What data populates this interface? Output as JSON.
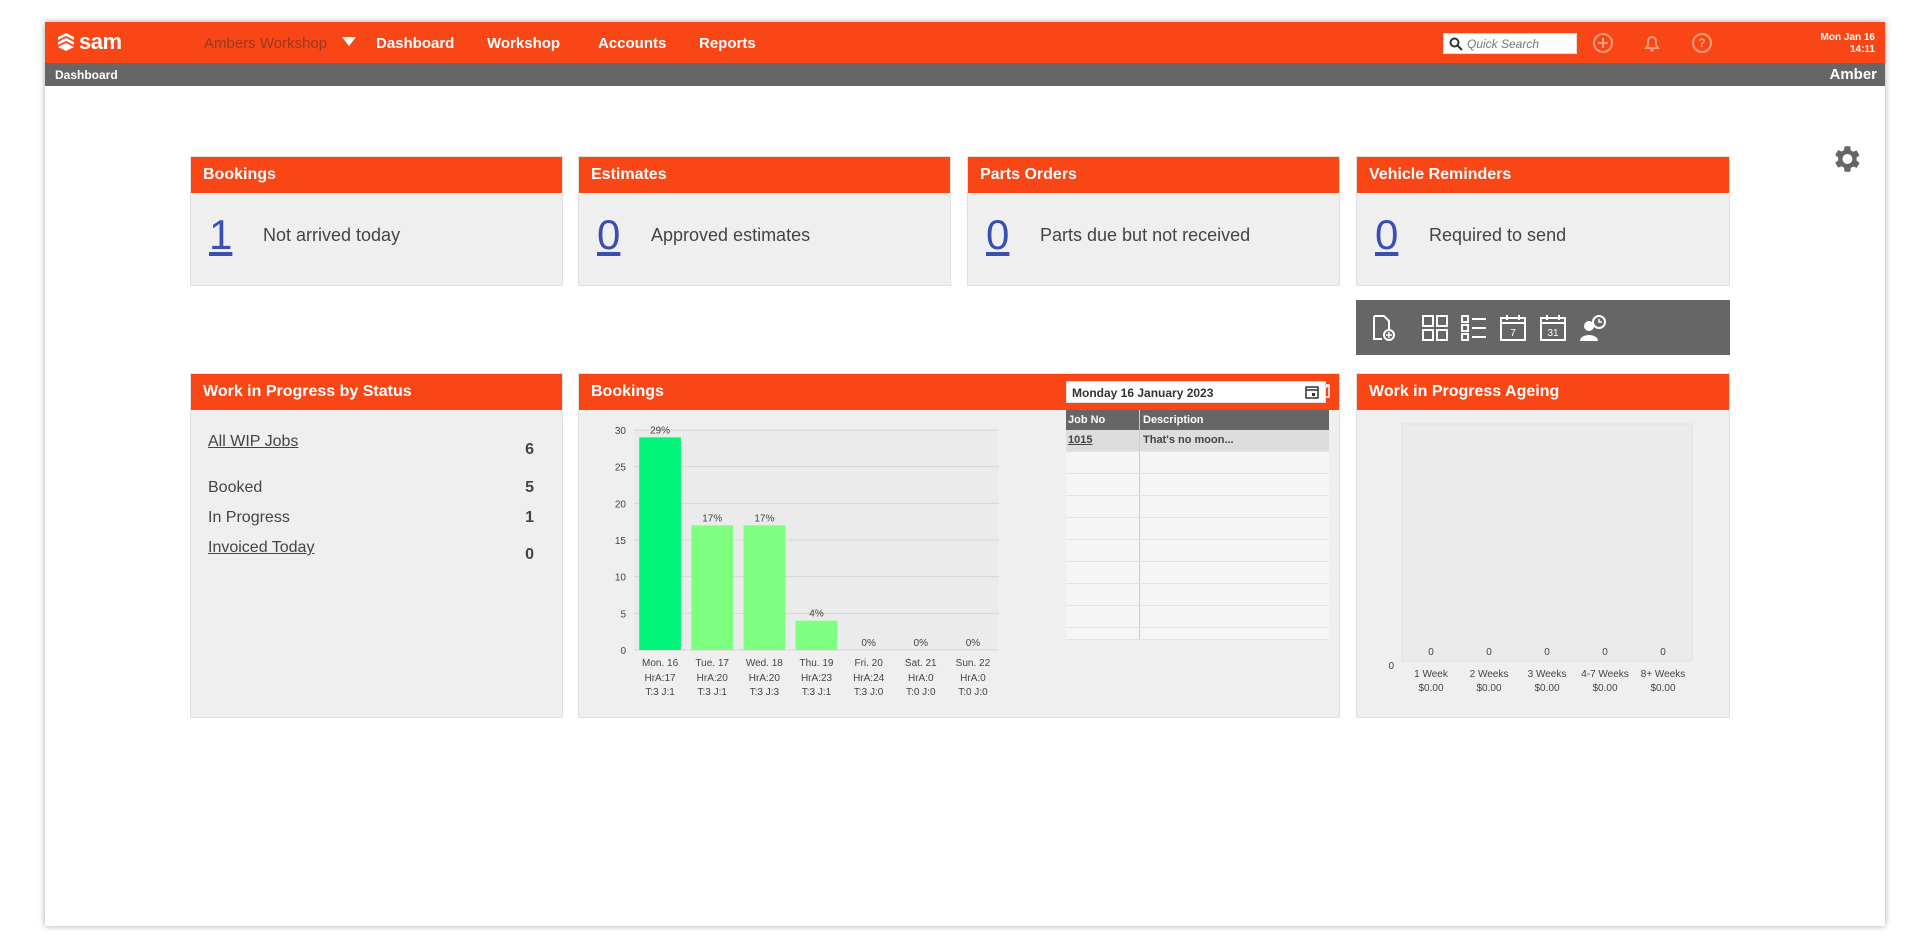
{
  "app": {
    "workshop": "Ambers Workshop",
    "nav": [
      "Dashboard",
      "Workshop",
      "Accounts",
      "Reports"
    ],
    "search_placeholder": "Quick Search",
    "date": "Mon Jan 16",
    "time": "14:11",
    "logo": "sam"
  },
  "subbar": {
    "crumb": "Dashboard",
    "user": "Amber"
  },
  "stats": [
    {
      "title": "Bookings",
      "value": "1",
      "label": "Not arrived today"
    },
    {
      "title": "Estimates",
      "value": "0",
      "label": "Approved estimates"
    },
    {
      "title": "Parts Orders",
      "value": "0",
      "label": "Parts due but not received"
    },
    {
      "title": "Vehicle Reminders",
      "value": "0",
      "label": "Required to send"
    }
  ],
  "toolbar_icons": [
    "new-document-icon",
    "grid-view-icon",
    "list-view-icon",
    "calendar-7-icon",
    "calendar-31-icon",
    "technician-clock-icon"
  ],
  "wip": {
    "title": "Work in Progress by Status",
    "rows": [
      {
        "label": "All WIP Jobs",
        "value": "6",
        "link": true
      },
      {
        "label": "Booked",
        "value": "5",
        "link": false
      },
      {
        "label": "In Progress",
        "value": "1",
        "link": false
      },
      {
        "label": "Invoiced Today",
        "value": "0",
        "link": true
      }
    ]
  },
  "bookings_panel": {
    "title": "Bookings",
    "date": "Monday 16 January 2023",
    "job_headers": [
      "Job No",
      "Description"
    ],
    "jobs": [
      {
        "no": "1015",
        "desc": "That's no moon..."
      }
    ]
  },
  "ageing": {
    "title": "Work in Progress Ageing"
  },
  "colors": {
    "brand": "#f94617",
    "bar_primary": "#00f57a",
    "bar_secondary": "#7fff7f",
    "link": "#3a4fb0"
  },
  "chart_data": [
    {
      "type": "bar",
      "categories": [
        "Mon. 16",
        "Tue. 17",
        "Wed. 18",
        "Thu. 19",
        "Fri. 20",
        "Sat. 21",
        "Sun. 22"
      ],
      "sublabels": [
        [
          "HrA:17",
          "T:3 J:1"
        ],
        [
          "HrA:20",
          "T:3 J:1"
        ],
        [
          "HrA:20",
          "T:3 J:3"
        ],
        [
          "HrA:23",
          "T:3 J:1"
        ],
        [
          "HrA:24",
          "T:3 J:0"
        ],
        [
          "HrA:0",
          "T:0 J:0"
        ],
        [
          "HrA:0",
          "T:0 J:0"
        ]
      ],
      "values": [
        29,
        17,
        17,
        4,
        0,
        0,
        0
      ],
      "data_labels": [
        "29%",
        "17%",
        "17%",
        "4%",
        "0%",
        "0%",
        "0%"
      ],
      "ylim": [
        0,
        30
      ],
      "yticks": [
        0,
        5,
        10,
        15,
        20,
        25,
        30
      ],
      "grid": true
    },
    {
      "type": "bar",
      "categories": [
        "1 Week",
        "2 Weeks",
        "3 Weeks",
        "4-7 Weeks",
        "8+ Weeks"
      ],
      "sublabels": [
        "$0.00",
        "$0.00",
        "$0.00",
        "$0.00",
        "$0.00"
      ],
      "values": [
        0,
        0,
        0,
        0,
        0
      ],
      "data_labels": [
        "0",
        "0",
        "0",
        "0",
        "0"
      ],
      "yticks": [
        0
      ]
    }
  ]
}
